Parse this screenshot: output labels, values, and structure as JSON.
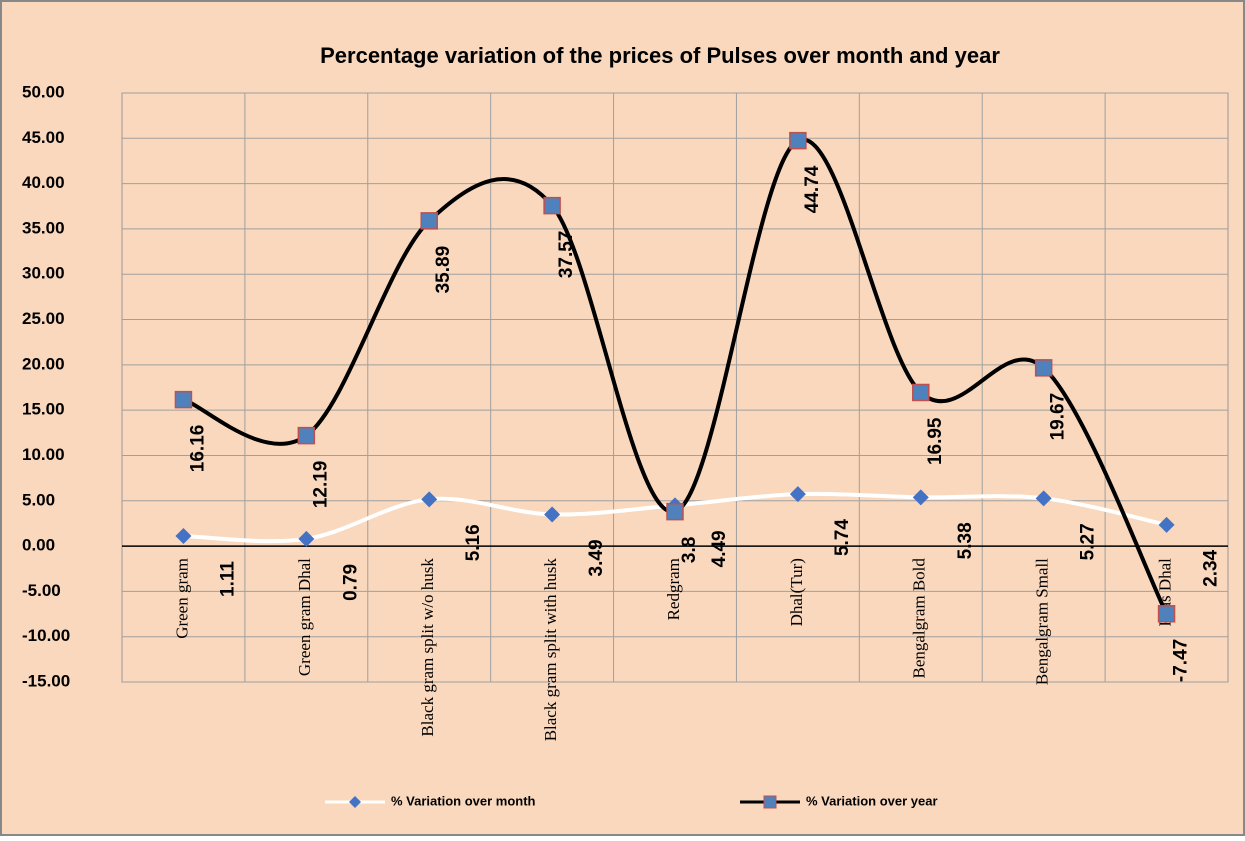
{
  "chart_data": {
    "type": "line",
    "title": "Percentage variation of the prices of Pulses over month and year",
    "categories": [
      "Green gram",
      "Green gram Dhal",
      "Black gram  split w/o husk",
      "Black gram  split with husk",
      "Redgram",
      "Dhal(Tur)",
      "Bengalgram Bold",
      "Bengalgram Small",
      "Peas Dhal"
    ],
    "series": [
      {
        "name": "% Variation over month",
        "color": "#ffffff",
        "marker_color": "#4472c4",
        "values": [
          1.11,
          0.79,
          5.16,
          3.49,
          4.49,
          5.74,
          5.38,
          5.27,
          2.34
        ]
      },
      {
        "name": "% Variation over year",
        "color": "#000000",
        "marker_color": "#4f81bd",
        "values": [
          16.16,
          12.19,
          35.89,
          37.57,
          3.8,
          44.74,
          16.95,
          19.67,
          -7.47
        ]
      }
    ],
    "ylim": [
      -15,
      50
    ],
    "yticks": [
      {
        "value": -15,
        "label": "-15.00"
      },
      {
        "value": -10,
        "label": "-10.00"
      },
      {
        "value": -5,
        "label": "-5.00"
      },
      {
        "value": 0,
        "label": "0.00"
      },
      {
        "value": 5,
        "label": "5.00"
      },
      {
        "value": 10,
        "label": "10.00"
      },
      {
        "value": 15,
        "label": "15.00"
      },
      {
        "value": 20,
        "label": "20.00"
      },
      {
        "value": 25,
        "label": "25.00"
      },
      {
        "value": 30,
        "label": "30.00"
      },
      {
        "value": 35,
        "label": "35.00"
      },
      {
        "value": 40,
        "label": "40.00"
      },
      {
        "value": 45,
        "label": "45.00"
      },
      {
        "value": 50,
        "label": "50.00"
      }
    ],
    "grid": true,
    "legend": "bottom"
  }
}
